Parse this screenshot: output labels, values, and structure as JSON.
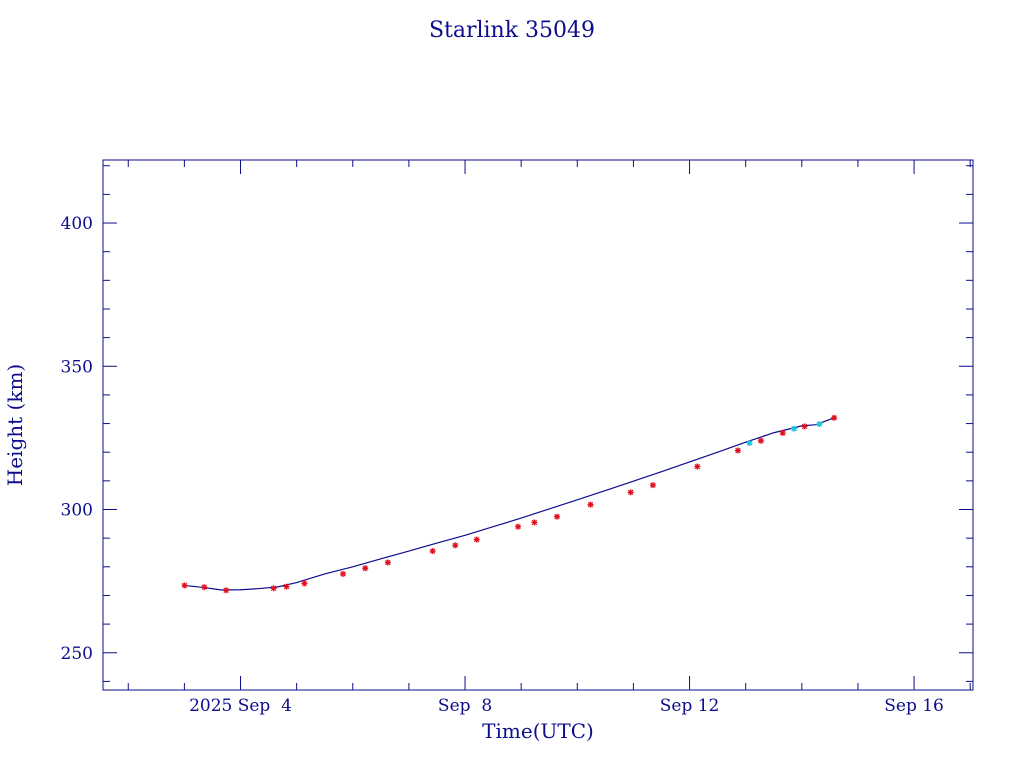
{
  "chart_data": {
    "type": "line",
    "title": "Starlink 35049",
    "xlabel": "Time(UTC)",
    "ylabel": "Height (km)",
    "x_unit": "days",
    "xlim": [
      "2025-09-01T13:12",
      "2025-09-17T01:12"
    ],
    "ylim": [
      237,
      422
    ],
    "grid": false,
    "x_ticks": [
      {
        "value": "2025-09-04T00:00",
        "label": "2025 Sep  4"
      },
      {
        "value": "2025-09-08T00:00",
        "label": "Sep  8"
      },
      {
        "value": "2025-09-12T00:00",
        "label": "Sep 12"
      },
      {
        "value": "2025-09-16T00:00",
        "label": "Sep 16"
      }
    ],
    "y_ticks": [
      250,
      300,
      350,
      400
    ],
    "colors": {
      "axis": "#0d0d8c",
      "curve": "#0d0d8c",
      "red_markers": "#e01020",
      "cyan_markers": "#10c8dc"
    },
    "series": [
      {
        "style": "line",
        "color": "#0d0d8c",
        "x": [
          "2025-09-03T00:05",
          "2025-09-03T08:00",
          "2025-09-03T16:00",
          "2025-09-04T00:00",
          "2025-09-04T08:00",
          "2025-09-04T16:00",
          "2025-09-05T00:00",
          "2025-09-05T12:00",
          "2025-09-06T00:00",
          "2025-09-06T12:00",
          "2025-09-07T00:00",
          "2025-09-07T12:00",
          "2025-09-08T00:00",
          "2025-09-08T12:00",
          "2025-09-09T00:00",
          "2025-09-09T12:00",
          "2025-09-10T00:00",
          "2025-09-10T12:00",
          "2025-09-11T00:00",
          "2025-09-11T12:00",
          "2025-09-12T00:00",
          "2025-09-12T12:00",
          "2025-09-13T00:00",
          "2025-09-13T12:00",
          "2025-09-14T00:00",
          "2025-09-14T06:00",
          "2025-09-14T13:50"
        ],
        "y": [
          273.5,
          272.8,
          271.9,
          272.0,
          272.4,
          273.0,
          274.5,
          277.5,
          280.0,
          282.8,
          285.5,
          288.3,
          291.0,
          294.0,
          297.0,
          300.2,
          303.4,
          306.6,
          309.9,
          313.2,
          316.6,
          320.0,
          323.5,
          326.8,
          329.2,
          329.6,
          332.0
        ]
      },
      {
        "style": "markers",
        "symbol": "asterisk",
        "color": "#e01020",
        "x": [
          "2025-09-03T00:05",
          "2025-09-03T08:30",
          "2025-09-03T17:50",
          "2025-09-04T14:10",
          "2025-09-04T19:40",
          "2025-09-05T03:20",
          "2025-09-05T19:50",
          "2025-09-06T05:20",
          "2025-09-06T15:00",
          "2025-09-07T10:10",
          "2025-09-07T19:50",
          "2025-09-08T05:00",
          "2025-09-08T22:40",
          "2025-09-09T05:40",
          "2025-09-09T15:20",
          "2025-09-10T05:40",
          "2025-09-10T22:50",
          "2025-09-11T08:20",
          "2025-09-12T03:20",
          "2025-09-12T20:40",
          "2025-09-13T06:30",
          "2025-09-13T15:50",
          "2025-09-14T01:10",
          "2025-09-14T13:50"
        ],
        "y": [
          273.5,
          272.9,
          271.8,
          272.5,
          273.1,
          274.2,
          277.5,
          279.5,
          281.5,
          285.5,
          287.5,
          289.5,
          294.0,
          295.5,
          297.5,
          301.7,
          306.0,
          308.5,
          315.0,
          320.6,
          324.0,
          326.7,
          329.0,
          332.0
        ]
      },
      {
        "style": "markers",
        "symbol": "asterisk",
        "color": "#10c8dc",
        "x": [
          "2025-09-13T01:40",
          "2025-09-13T20:40",
          "2025-09-14T07:30"
        ],
        "y": [
          323.2,
          328.2,
          329.8
        ]
      }
    ]
  }
}
